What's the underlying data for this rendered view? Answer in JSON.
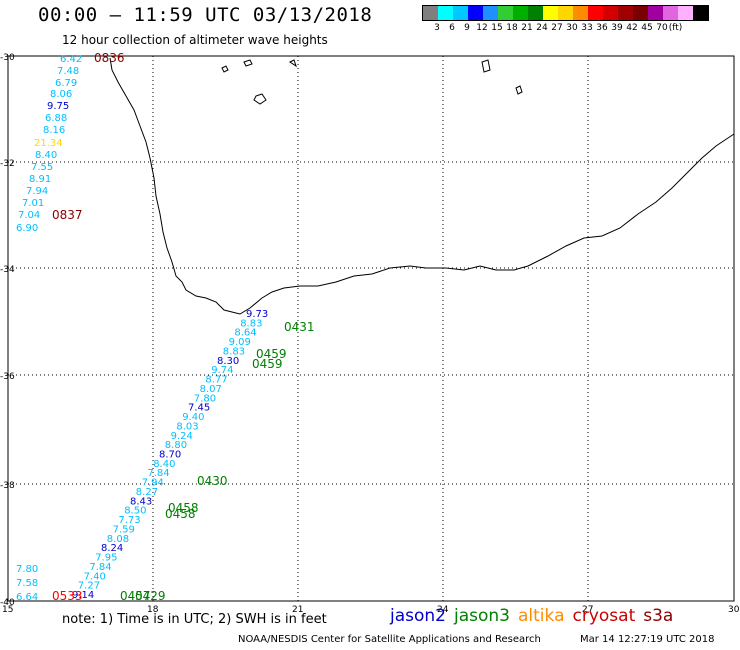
{
  "header": {
    "title": "00:00 – 11:59 UTC 03/13/2018",
    "subtitle": "12 hour collection of altimeter wave heights"
  },
  "colorbar": {
    "colors": [
      "#7f7f7f",
      "#00ffff",
      "#00c8ff",
      "#0000ff",
      "#1e90ff",
      "#32cd32",
      "#00b000",
      "#008000",
      "#ffff00",
      "#ffd700",
      "#ff8c00",
      "#ff0000",
      "#d40000",
      "#a00000",
      "#7a0000",
      "#a000a0",
      "#e066e0",
      "#ffb0ff",
      "#000000"
    ],
    "labels": [
      "3",
      "6",
      "9",
      "12",
      "15",
      "18",
      "21",
      "24",
      "27",
      "30",
      "33",
      "36",
      "39",
      "42",
      "45",
      "70"
    ],
    "unit": "(ft)"
  },
  "map": {
    "lon_labels": [
      "15",
      "18",
      "21",
      "24",
      "27",
      "30"
    ],
    "lat_labels": [
      "-30",
      "-32",
      "-34",
      "-36",
      "-38",
      "-40"
    ],
    "left_track_values": [
      "6.42",
      "7.48",
      "6.79",
      "8.06",
      "9.75",
      "6.88",
      "8.16",
      "21.34",
      "8.40",
      "7.55",
      "8.91",
      "7.94",
      "7.01",
      "7.04",
      "6.90"
    ],
    "left_track_colors": [
      "#00bfff",
      "#00bfff",
      "#00bfff",
      "#00bfff",
      "#0000cd",
      "#00bfff",
      "#00bfff",
      "#ffd700",
      "#00bfff",
      "#00bfff",
      "#00bfff",
      "#00bfff",
      "#00bfff",
      "#00bfff",
      "#00bfff"
    ],
    "bottom_left_values": [
      "7.80",
      "7.58",
      "6.64"
    ],
    "pass_times": [
      {
        "label": "0836",
        "color": "#8b0000"
      },
      {
        "label": "0837",
        "color": "#8b0000"
      },
      {
        "label": "0431",
        "color": "#008000"
      },
      {
        "label": "0459",
        "color": "#008000"
      },
      {
        "label": "0459",
        "color": "#008000"
      },
      {
        "label": "0430",
        "color": "#008000"
      },
      {
        "label": "0458",
        "color": "#008000"
      },
      {
        "label": "0458",
        "color": "#008000"
      },
      {
        "label": "0533",
        "color": "#ff0000"
      },
      {
        "label": "0457",
        "color": "#008000"
      },
      {
        "label": "0429",
        "color": "#008000"
      }
    ],
    "track_values": [
      "9.73",
      "8.83",
      "8.64",
      "9.09",
      "8.83",
      "8.30",
      "9.74",
      "8.77",
      "8.07",
      "7.80",
      "7.45",
      "9.40",
      "8.03",
      "9.24",
      "8.80",
      "8.70",
      "8.40",
      "7.84",
      "7.94",
      "8.27",
      "8.43",
      "8.50",
      "7.73",
      "7.59",
      "8.08",
      "8.24",
      "7.95",
      "7.84",
      "7.40",
      "7.27",
      "9.14"
    ]
  },
  "footer": {
    "note": "note: 1) Time is in UTC; 2) SWH is in feet",
    "legend": [
      {
        "name": "jason2",
        "color": "#0000cd"
      },
      {
        "name": "jason3",
        "color": "#008000"
      },
      {
        "name": "altika",
        "color": "#ff8c00"
      },
      {
        "name": "cryosat",
        "color": "#cc0000"
      },
      {
        "name": "s3a",
        "color": "#8b0000"
      }
    ],
    "credit": "NOAA/NESDIS Center for Satellite Applications and Research",
    "timestamp": "Mar 14 12:27:19 UTC 2018"
  }
}
